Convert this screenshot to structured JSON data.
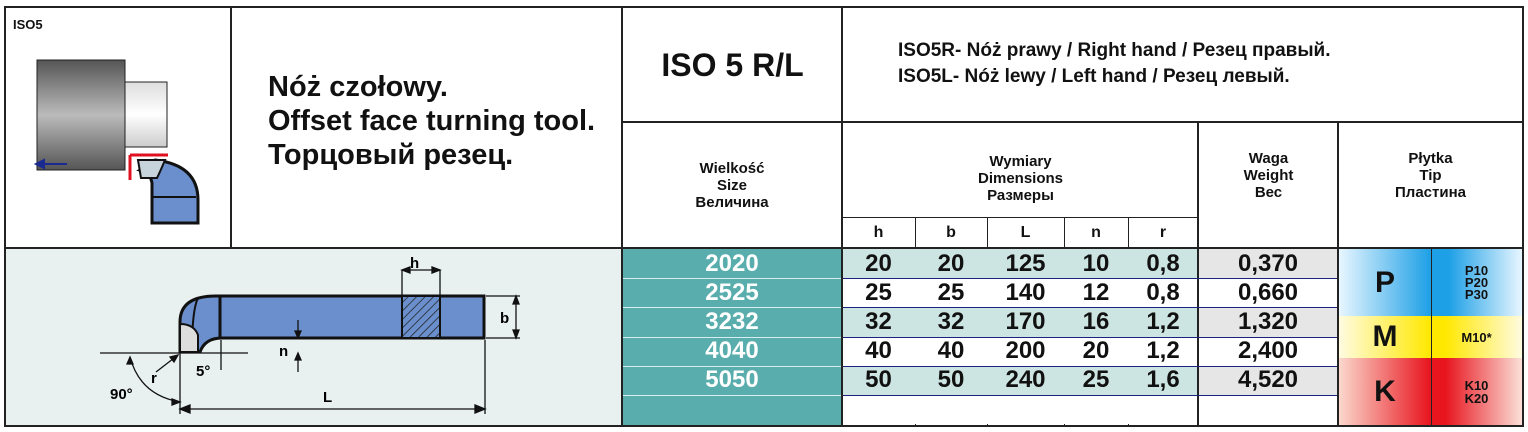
{
  "code_label": "ISO5",
  "title_lines": [
    "Nóż czołowy.",
    "Offset face turning tool.",
    "Торцовый резец."
  ],
  "model": "ISO 5 R/L",
  "variants": [
    "ISO5R- Nóż prawy / Right hand / Резец правый.",
    "ISO5L- Nóż lewy / Left hand / Резец левый."
  ],
  "headers": {
    "size": [
      "Wielkość",
      "Size",
      "Величина"
    ],
    "dimensions": [
      "Wymiary",
      "Dimensions",
      "Размеры"
    ],
    "weight": [
      "Waga",
      "Weight",
      "Вес"
    ],
    "tip": [
      "Płytka",
      "Tip",
      "Пластина"
    ],
    "dim_cols": [
      "h",
      "b",
      "L",
      "n",
      "r"
    ]
  },
  "rows": [
    {
      "size": "2020",
      "h": "20",
      "b": "20",
      "L": "125",
      "n": "10",
      "r": "0,8",
      "weight": "0,370"
    },
    {
      "size": "2525",
      "h": "25",
      "b": "25",
      "L": "140",
      "n": "12",
      "r": "0,8",
      "weight": "0,660"
    },
    {
      "size": "3232",
      "h": "32",
      "b": "32",
      "L": "170",
      "n": "16",
      "r": "1,2",
      "weight": "1,320"
    },
    {
      "size": "4040",
      "h": "40",
      "b": "40",
      "L": "200",
      "n": "20",
      "r": "1,2",
      "weight": "2,400"
    },
    {
      "size": "5050",
      "h": "50",
      "b": "50",
      "L": "240",
      "n": "25",
      "r": "1,6",
      "weight": "4,520"
    }
  ],
  "tip_groups": [
    {
      "letter": "P",
      "grades": [
        "P10",
        "P20",
        "P30"
      ],
      "color": "#1ea0e6"
    },
    {
      "letter": "M",
      "grades": [
        "M10*"
      ],
      "color": "#ffe800"
    },
    {
      "letter": "K",
      "grades": [
        "K10",
        "K20"
      ],
      "color": "#e8141e"
    }
  ],
  "diagram_labels": {
    "h": "h",
    "b": "b",
    "n": "n",
    "r": "r",
    "L": "L",
    "angle_5": "5°",
    "angle_90": "90°"
  },
  "colors": {
    "size_col": "#5aadad",
    "row_shade": "#cce4e2",
    "weight_shade": "#e6e6e6",
    "tool_blue": "#6a8fcc",
    "diagram_bg": "#e8f1f0"
  }
}
